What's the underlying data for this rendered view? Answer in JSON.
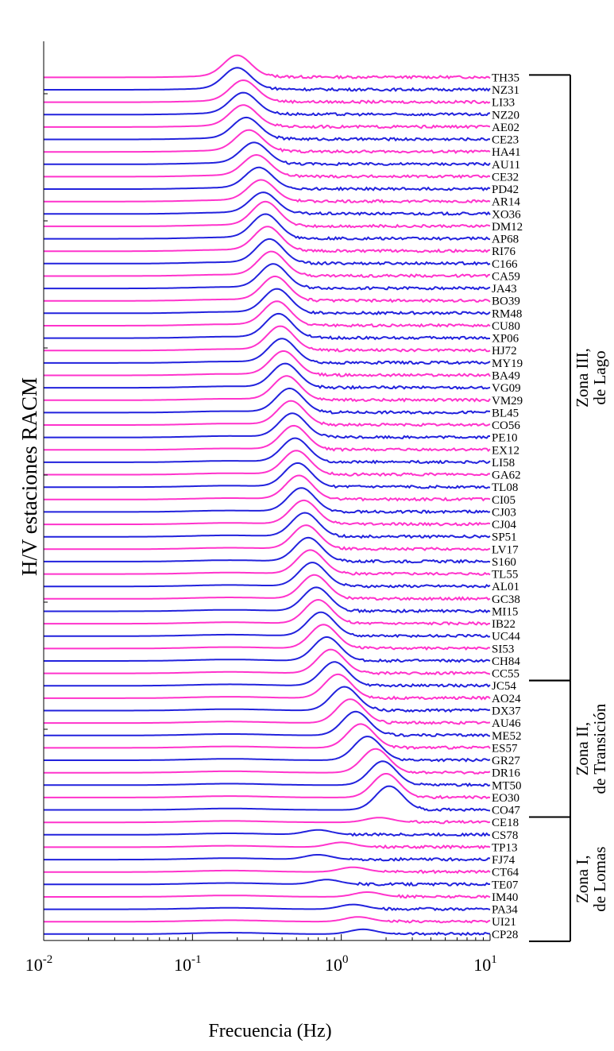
{
  "chart_data": {
    "type": "line",
    "xlabel": "Frecuencia (Hz)",
    "ylabel": "H/V estaciones RACM",
    "x_scale": "log",
    "xlim": [
      0.01,
      10
    ],
    "x_ticks": [
      {
        "value": 0.01,
        "base": "10",
        "exp": "-2"
      },
      {
        "value": 0.1,
        "base": "10",
        "exp": "-1"
      },
      {
        "value": 1,
        "base": "10",
        "exp": "0"
      },
      {
        "value": 10,
        "base": "10",
        "exp": "1"
      }
    ],
    "colors": {
      "magenta": "#ff33cc",
      "blue": "#2222dd"
    },
    "series": [
      {
        "name": "TH35",
        "color": "magenta",
        "f0": 0.2
      },
      {
        "name": "NZ31",
        "color": "blue",
        "f0": 0.2
      },
      {
        "name": "LI33",
        "color": "magenta",
        "f0": 0.22
      },
      {
        "name": "NZ20",
        "color": "blue",
        "f0": 0.22
      },
      {
        "name": "AE02",
        "color": "magenta",
        "f0": 0.22
      },
      {
        "name": "CE23",
        "color": "blue",
        "f0": 0.23
      },
      {
        "name": "HA41",
        "color": "magenta",
        "f0": 0.24
      },
      {
        "name": "AU11",
        "color": "blue",
        "f0": 0.26
      },
      {
        "name": "CE32",
        "color": "magenta",
        "f0": 0.27
      },
      {
        "name": "PD42",
        "color": "blue",
        "f0": 0.28
      },
      {
        "name": "AR14",
        "color": "magenta",
        "f0": 0.29
      },
      {
        "name": "XO36",
        "color": "blue",
        "f0": 0.3
      },
      {
        "name": "DM12",
        "color": "magenta",
        "f0": 0.31
      },
      {
        "name": "AP68",
        "color": "blue",
        "f0": 0.31
      },
      {
        "name": "RI76",
        "color": "magenta",
        "f0": 0.32
      },
      {
        "name": "C166",
        "color": "blue",
        "f0": 0.33
      },
      {
        "name": "CA59",
        "color": "magenta",
        "f0": 0.34
      },
      {
        "name": "JA43",
        "color": "blue",
        "f0": 0.35
      },
      {
        "name": "BO39",
        "color": "magenta",
        "f0": 0.36
      },
      {
        "name": "RM48",
        "color": "blue",
        "f0": 0.37
      },
      {
        "name": "CU80",
        "color": "magenta",
        "f0": 0.37
      },
      {
        "name": "XP06",
        "color": "blue",
        "f0": 0.38
      },
      {
        "name": "HJ72",
        "color": "magenta",
        "f0": 0.39
      },
      {
        "name": "MY19",
        "color": "blue",
        "f0": 0.4
      },
      {
        "name": "BA49",
        "color": "magenta",
        "f0": 0.41
      },
      {
        "name": "VG09",
        "color": "blue",
        "f0": 0.42
      },
      {
        "name": "VM29",
        "color": "magenta",
        "f0": 0.43
      },
      {
        "name": "BL45",
        "color": "blue",
        "f0": 0.45
      },
      {
        "name": "CO56",
        "color": "magenta",
        "f0": 0.46
      },
      {
        "name": "PE10",
        "color": "blue",
        "f0": 0.47
      },
      {
        "name": "EX12",
        "color": "magenta",
        "f0": 0.48
      },
      {
        "name": "LI58",
        "color": "blue",
        "f0": 0.49
      },
      {
        "name": "GA62",
        "color": "magenta",
        "f0": 0.5
      },
      {
        "name": "TL08",
        "color": "blue",
        "f0": 0.51
      },
      {
        "name": "CI05",
        "color": "magenta",
        "f0": 0.52
      },
      {
        "name": "CJ03",
        "color": "blue",
        "f0": 0.54
      },
      {
        "name": "CJ04",
        "color": "magenta",
        "f0": 0.56
      },
      {
        "name": "SP51",
        "color": "blue",
        "f0": 0.57
      },
      {
        "name": "LV17",
        "color": "magenta",
        "f0": 0.58
      },
      {
        "name": "S160",
        "color": "blue",
        "f0": 0.6
      },
      {
        "name": "TL55",
        "color": "magenta",
        "f0": 0.62
      },
      {
        "name": "AL01",
        "color": "blue",
        "f0": 0.64
      },
      {
        "name": "GC38",
        "color": "magenta",
        "f0": 0.66
      },
      {
        "name": "MI15",
        "color": "blue",
        "f0": 0.68
      },
      {
        "name": "IB22",
        "color": "magenta",
        "f0": 0.7
      },
      {
        "name": "UC44",
        "color": "blue",
        "f0": 0.73
      },
      {
        "name": "SI53",
        "color": "magenta",
        "f0": 0.76
      },
      {
        "name": "CH84",
        "color": "blue",
        "f0": 0.8
      },
      {
        "name": "CC55",
        "color": "magenta",
        "f0": 0.85
      },
      {
        "name": "JC54",
        "color": "blue",
        "f0": 0.9
      },
      {
        "name": "AO24",
        "color": "magenta",
        "f0": 0.95
      },
      {
        "name": "DX37",
        "color": "blue",
        "f0": 1.05
      },
      {
        "name": "AU46",
        "color": "magenta",
        "f0": 1.15
      },
      {
        "name": "ME52",
        "color": "blue",
        "f0": 1.25
      },
      {
        "name": "ES57",
        "color": "magenta",
        "f0": 1.35
      },
      {
        "name": "GR27",
        "color": "blue",
        "f0": 1.5
      },
      {
        "name": "DR16",
        "color": "magenta",
        "f0": 1.7
      },
      {
        "name": "MT50",
        "color": "blue",
        "f0": 1.9
      },
      {
        "name": "EO30",
        "color": "magenta",
        "f0": 2.0
      },
      {
        "name": "CO47",
        "color": "blue",
        "f0": 2.1
      },
      {
        "name": "CE18",
        "color": "magenta",
        "f0": 1.8
      },
      {
        "name": "CS78",
        "color": "blue",
        "f0": 0.7
      },
      {
        "name": "TP13",
        "color": "magenta",
        "f0": 1.0
      },
      {
        "name": "FJ74",
        "color": "blue",
        "f0": 0.7
      },
      {
        "name": "CT64",
        "color": "magenta",
        "f0": 1.2
      },
      {
        "name": "TE07",
        "color": "blue",
        "f0": 0.8
      },
      {
        "name": "IM40",
        "color": "magenta",
        "f0": 1.5
      },
      {
        "name": "PA34",
        "color": "blue",
        "f0": 1.2
      },
      {
        "name": "UI21",
        "color": "magenta",
        "f0": 1.3
      },
      {
        "name": "CP28",
        "color": "blue",
        "f0": 1.4
      }
    ],
    "zones": [
      {
        "line1": "Zona III,",
        "line2": "de Lago",
        "from": "TH35",
        "to": "CC55"
      },
      {
        "line1": "Zona II,",
        "line2": "de Transición",
        "from": "CC55",
        "to": "CO47"
      },
      {
        "line1": "Zona I,",
        "line2": "de Lomas",
        "from": "CO47",
        "to": "CP28"
      }
    ]
  }
}
